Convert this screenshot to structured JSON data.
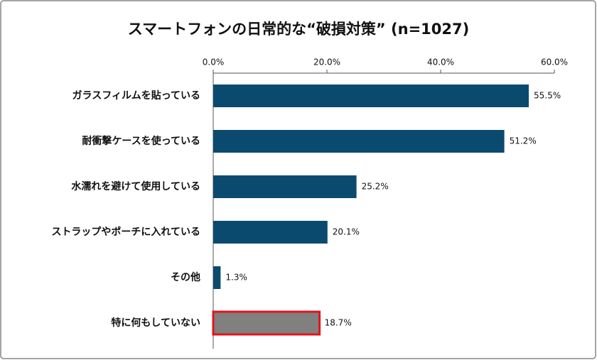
{
  "chart_data": {
    "type": "barh",
    "title": "スマートフォンの日常的な“破損対策” (n=1027)",
    "categories": [
      "ガラスフィルムを貼っている",
      "耐衝撃ケースを使っている",
      "水濡れを避けて使用している",
      "ストラップやポーチに入れている",
      "その他",
      "特に何もしていない"
    ],
    "values": [
      55.5,
      51.2,
      25.2,
      20.1,
      1.3,
      18.7
    ],
    "value_labels": [
      "55.5%",
      "51.2%",
      "25.2%",
      "20.1%",
      "1.3%",
      "18.7%"
    ],
    "colors": [
      "#0b4a6f",
      "#0b4a6f",
      "#0b4a6f",
      "#0b4a6f",
      "#0b4a6f",
      "#808080"
    ],
    "edgecolors": [
      null,
      null,
      null,
      null,
      null,
      "#e3141b"
    ],
    "xlim": [
      0,
      60
    ],
    "xticks": [
      {
        "value": 0,
        "label": "0.0%"
      },
      {
        "value": 20,
        "label": "20.0%"
      },
      {
        "value": 40,
        "label": "40.0%"
      },
      {
        "value": 60,
        "label": "60.0%"
      }
    ],
    "xaxis_position": "top",
    "grid": false
  }
}
